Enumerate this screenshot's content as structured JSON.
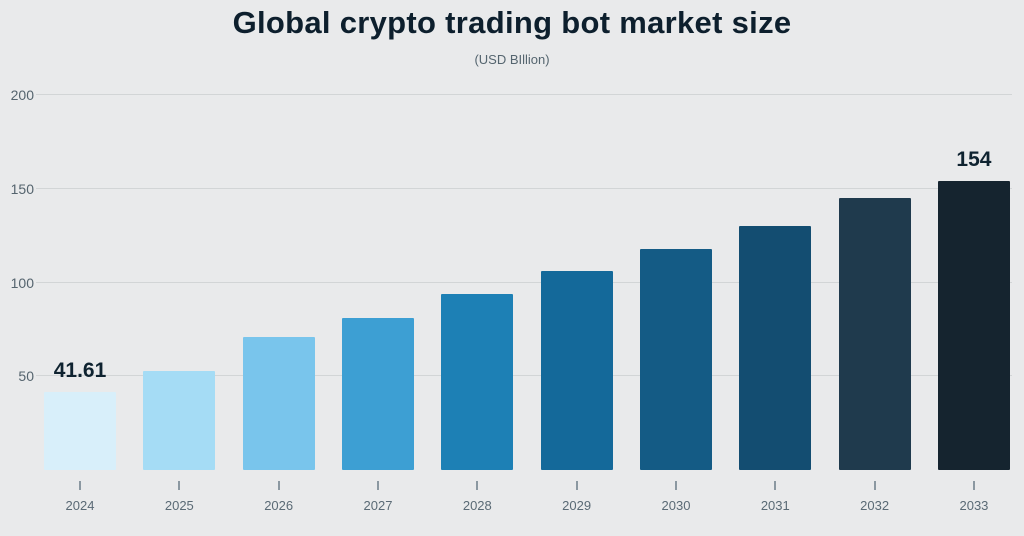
{
  "chart_data": {
    "type": "bar",
    "title": "Global crypto trading bot market size",
    "subtitle": "(USD BIllion)",
    "categories": [
      "2024",
      "2025",
      "2026",
      "2027",
      "2028",
      "2029",
      "2030",
      "2031",
      "2032",
      "2033"
    ],
    "values": [
      41.61,
      53,
      71,
      81,
      94,
      106,
      118,
      130,
      145,
      154
    ],
    "value_labels": [
      "41.61",
      "",
      "",
      "",
      "",
      "",
      "",
      "",
      "",
      "154"
    ],
    "bar_colors": [
      "#d8effa",
      "#a5dcf5",
      "#79c5ec",
      "#3d9fd3",
      "#1d80b5",
      "#14699a",
      "#145b85",
      "#134d71",
      "#1f3a4d",
      "#15242f"
    ],
    "xlabel": "",
    "ylabel": "",
    "ylim": [
      0,
      200
    ],
    "yticks": [
      50,
      100,
      150,
      200
    ],
    "grid": "horizontal",
    "legend": "none"
  },
  "colors": {
    "background": "#e9eaeb",
    "title_text": "#0d1f2d",
    "axis_text": "#5a6a75",
    "y_axis_text": "#55646e",
    "gridline": "#d2d5d6",
    "tick_mark": "#8b98a1",
    "value_label_text": "#0f2330"
  }
}
